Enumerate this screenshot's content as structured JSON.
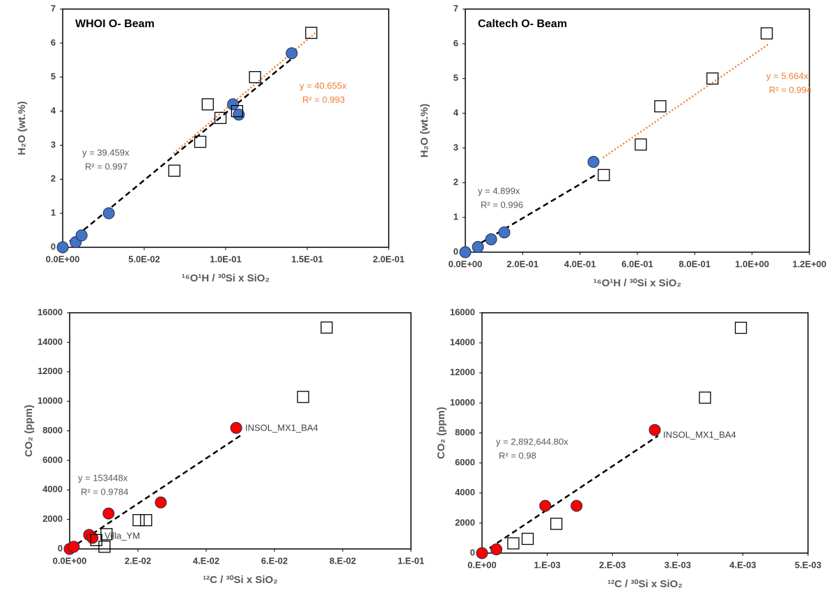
{
  "chart_data": [
    {
      "type": "scatter",
      "title": "WHOI O- Beam",
      "x_label": "¹⁶O¹H / ³⁰Si x SiO₂",
      "y_label": "H₂O (wt.%)",
      "xlim": [
        0,
        0.2
      ],
      "ylim": [
        0,
        7
      ],
      "xticks": [
        {
          "value": 0,
          "label": "0.0E+00"
        },
        {
          "value": 0.05,
          "label": "5.0E-02"
        },
        {
          "value": 0.1,
          "label": "1.0E-01"
        },
        {
          "value": 0.15,
          "label": "1.5E-01"
        },
        {
          "value": 0.2,
          "label": "2.0E-01"
        }
      ],
      "yticks": [
        0,
        1,
        2,
        3,
        4,
        5,
        6,
        7
      ],
      "series": [
        {
          "marker": "circle",
          "color": "#4472c4",
          "x": [
            0,
            0.008,
            0.0116,
            0.0283,
            0.1045,
            0.108,
            0.1405
          ],
          "values": [
            0,
            0.15,
            0.35,
            1.0,
            4.2,
            3.9,
            5.7
          ]
        },
        {
          "marker": "square-open",
          "color": "#000000",
          "x": [
            0.0685,
            0.0844,
            0.089,
            0.0968,
            0.107,
            0.118,
            0.1525
          ],
          "values": [
            2.25,
            3.1,
            4.2,
            3.8,
            4.0,
            5.0,
            6.3
          ]
        }
      ],
      "trendlines": [
        {
          "style": "dashed",
          "color": "#000000",
          "label_color": "#595959",
          "equation": "y = 39.459x",
          "r2": "R² = 0.997",
          "x": [
            0,
            0.142
          ],
          "values": [
            0,
            5.6
          ]
        },
        {
          "style": "dotted",
          "color": "#ed7d31",
          "label_color": "#ed7d31",
          "equation": "y = 40.655x",
          "r2": "R² = 0.993",
          "x": [
            0.068,
            0.155
          ],
          "values": [
            2.76,
            6.3
          ]
        }
      ],
      "annotations": []
    },
    {
      "type": "scatter",
      "title": "Caltech O- Beam",
      "x_label": "¹⁶O¹H / ³⁰Si x SiO₂",
      "y_label": "H₂O (wt.%)",
      "xlim": [
        0,
        1.2
      ],
      "ylim": [
        0,
        7
      ],
      "xticks": [
        {
          "value": 0,
          "label": "0.0E+00"
        },
        {
          "value": 0.2,
          "label": "2.0E-01"
        },
        {
          "value": 0.4,
          "label": "4.0E-01"
        },
        {
          "value": 0.6,
          "label": "6.0E-01"
        },
        {
          "value": 0.8,
          "label": "8.0E-01"
        },
        {
          "value": 1.0,
          "label": "1.0E+00"
        },
        {
          "value": 1.2,
          "label": "1.2E+00"
        }
      ],
      "yticks": [
        0,
        1,
        2,
        3,
        4,
        5,
        6,
        7
      ],
      "series": [
        {
          "marker": "circle",
          "color": "#4472c4",
          "x": [
            0,
            0.044,
            0.09,
            0.136,
            0.447
          ],
          "values": [
            0,
            0.15,
            0.37,
            0.57,
            2.6
          ]
        },
        {
          "marker": "square-open",
          "color": "#000000",
          "x": [
            0.483,
            0.612,
            0.68,
            0.862,
            1.051
          ],
          "values": [
            2.22,
            3.1,
            4.2,
            5.0,
            6.3
          ]
        }
      ],
      "trendlines": [
        {
          "style": "dashed",
          "color": "#000000",
          "label_color": "#595959",
          "equation": "y = 4.899x",
          "r2": "R² = 0.996",
          "x": [
            0,
            0.46
          ],
          "values": [
            0,
            2.25
          ]
        },
        {
          "style": "dotted",
          "color": "#ed7d31",
          "label_color": "#ed7d31",
          "equation": "y = 5.664x",
          "r2": "R² = 0.994",
          "x": [
            0.48,
            1.06
          ],
          "values": [
            2.72,
            6.0
          ]
        }
      ],
      "annotations": []
    },
    {
      "type": "scatter",
      "x_label": "¹²C / ³⁰Si  x SiO₂",
      "y_label": "CO₂ (ppm)",
      "xlim": [
        0,
        0.1
      ],
      "ylim": [
        0,
        16000
      ],
      "xticks": [
        {
          "value": 0,
          "label": "0.0E+00"
        },
        {
          "value": 0.02,
          "label": "2.E-02"
        },
        {
          "value": 0.04,
          "label": "4.E-02"
        },
        {
          "value": 0.06,
          "label": "6.E-02"
        },
        {
          "value": 0.08,
          "label": "8.E-02"
        },
        {
          "value": 0.1,
          "label": "1.E-01"
        }
      ],
      "yticks": [
        0,
        2000,
        4000,
        6000,
        8000,
        10000,
        12000,
        14000,
        16000
      ],
      "series": [
        {
          "marker": "circle",
          "color": "#ff0000",
          "x": [
            0,
            0.0012,
            0.0057,
            0.0067,
            0.0114,
            0.0267,
            0.0488
          ],
          "values": [
            0,
            150,
            950,
            750,
            2400,
            3150,
            8200
          ]
        },
        {
          "marker": "square-open",
          "color": "#000000",
          "x": [
            0.0078,
            0.0108,
            0.0102,
            0.0202,
            0.0224,
            0.0684,
            0.0753
          ],
          "values": [
            600,
            1000,
            150,
            1950,
            1950,
            10300,
            15000
          ]
        }
      ],
      "trendlines": [
        {
          "style": "dashed",
          "color": "#000000",
          "label_color": "#595959",
          "equation": "y = 153448x",
          "r2": "R² = 0.9784",
          "x": [
            0,
            0.05
          ],
          "values": [
            0,
            7672
          ]
        }
      ],
      "annotations": [
        "INSOL_MX1_BA4",
        "Villa_YM"
      ]
    },
    {
      "type": "scatter",
      "x_label": "¹²C / ³⁰Si  x SiO₂",
      "y_label": "CO₂ (ppm)",
      "xlim": [
        0,
        0.005
      ],
      "ylim": [
        0,
        16000
      ],
      "xticks": [
        {
          "value": 0,
          "label": "0.E+00"
        },
        {
          "value": 0.001,
          "label": "1.E-03"
        },
        {
          "value": 0.002,
          "label": "2.E-03"
        },
        {
          "value": 0.003,
          "label": "3.E-03"
        },
        {
          "value": 0.004,
          "label": "4.E-03"
        },
        {
          "value": 0.005,
          "label": "5.E-03"
        }
      ],
      "yticks": [
        0,
        2000,
        4000,
        6000,
        8000,
        10000,
        12000,
        14000,
        16000
      ],
      "series": [
        {
          "marker": "circle",
          "color": "#ff0000",
          "x": [
            0,
            0.00022,
            0.00097,
            0.00145,
            0.00265
          ],
          "values": [
            0,
            250,
            3150,
            3150,
            8200
          ]
        },
        {
          "marker": "square-open",
          "color": "#000000",
          "x": [
            0.00048,
            0.0007,
            0.00114,
            0.00342,
            0.00397
          ],
          "values": [
            650,
            950,
            1950,
            10350,
            15000
          ]
        }
      ],
      "trendlines": [
        {
          "style": "dashed",
          "color": "#000000",
          "label_color": "#595959",
          "equation": "y = 2,892,644.80x",
          "r2": "R² = 0.98",
          "x": [
            0,
            0.0027
          ],
          "values": [
            0,
            7810
          ]
        }
      ],
      "annotations": [
        "INSOL_MX1_BA4"
      ]
    }
  ]
}
